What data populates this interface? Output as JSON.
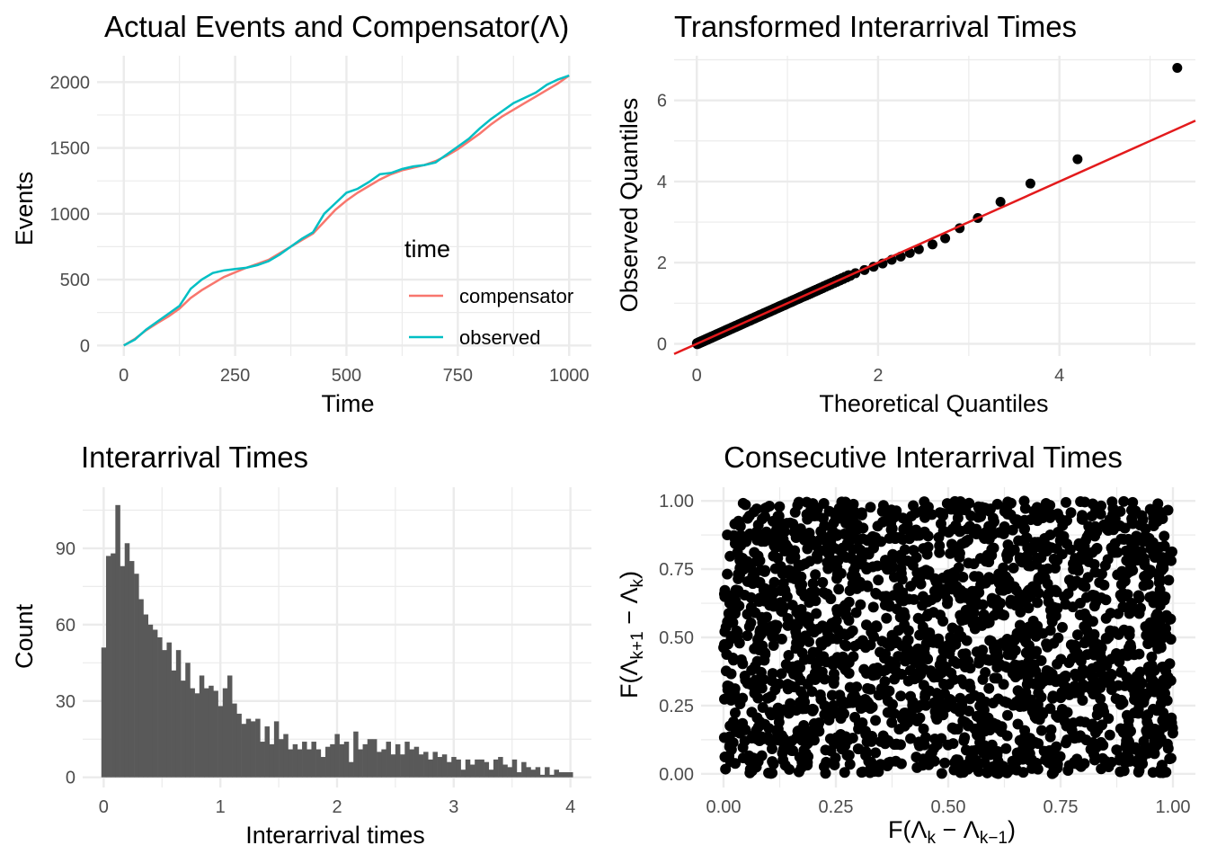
{
  "chart_data": [
    {
      "id": "events",
      "type": "line",
      "title": "Actual Events and Compensator(Λ)",
      "xlabel": "Time",
      "ylabel": "Events",
      "xlim": [
        -60,
        1050
      ],
      "ylim": [
        -80,
        2200
      ],
      "x_ticks": [
        0,
        250,
        500,
        750,
        1000
      ],
      "x_tick_labels": [
        "0",
        "250",
        "500",
        "750",
        "1000"
      ],
      "y_ticks": [
        0,
        500,
        1000,
        1500,
        2000
      ],
      "y_tick_labels": [
        "0",
        "500",
        "1000",
        "1500",
        "2000"
      ],
      "grid": true,
      "legend": {
        "title": "time",
        "placement": "inside-bottom-right"
      },
      "series": [
        {
          "name": "compensator",
          "color": "#F8766D",
          "x": [
            0,
            25,
            50,
            75,
            100,
            125,
            150,
            175,
            200,
            225,
            250,
            275,
            300,
            325,
            350,
            375,
            400,
            425,
            450,
            475,
            500,
            525,
            550,
            575,
            600,
            625,
            650,
            675,
            700,
            725,
            750,
            775,
            800,
            825,
            850,
            875,
            900,
            925,
            950,
            975,
            1000
          ],
          "y": [
            0,
            50,
            115,
            170,
            220,
            280,
            360,
            420,
            470,
            520,
            555,
            590,
            620,
            650,
            700,
            750,
            800,
            850,
            940,
            1030,
            1100,
            1160,
            1210,
            1260,
            1300,
            1330,
            1350,
            1370,
            1400,
            1440,
            1490,
            1550,
            1610,
            1680,
            1740,
            1790,
            1840,
            1890,
            1940,
            1990,
            2050
          ]
        },
        {
          "name": "observed",
          "color": "#00BFC4",
          "x": [
            0,
            25,
            50,
            75,
            100,
            125,
            150,
            175,
            200,
            225,
            250,
            275,
            300,
            325,
            350,
            375,
            400,
            425,
            450,
            475,
            500,
            525,
            550,
            575,
            600,
            625,
            650,
            675,
            700,
            725,
            750,
            775,
            800,
            825,
            850,
            875,
            900,
            925,
            950,
            975,
            1000
          ],
          "y": [
            0,
            45,
            120,
            180,
            240,
            300,
            430,
            500,
            550,
            570,
            580,
            590,
            610,
            640,
            690,
            750,
            810,
            860,
            1000,
            1080,
            1160,
            1190,
            1240,
            1300,
            1310,
            1340,
            1360,
            1370,
            1390,
            1450,
            1510,
            1570,
            1650,
            1720,
            1780,
            1840,
            1880,
            1920,
            1980,
            2020,
            2050
          ]
        }
      ]
    },
    {
      "id": "qq",
      "type": "scatter",
      "title": "Transformed Interarrival Times",
      "xlabel": "Theoretical Quantiles",
      "ylabel": "Observed Quantiles",
      "xlim": [
        -0.25,
        5.5
      ],
      "ylim": [
        -0.3,
        7.1
      ],
      "x_ticks": [
        0,
        2,
        4
      ],
      "x_tick_labels": [
        "0",
        "2",
        "4"
      ],
      "y_ticks": [
        0,
        2,
        4,
        6
      ],
      "y_tick_labels": [
        "0",
        "2",
        "4",
        "6"
      ],
      "grid": true,
      "reference_line": {
        "intercept": 0,
        "slope": 1.0,
        "color": "#E31A1C"
      },
      "points_color": "#000000",
      "n_points": 2050,
      "upper_points": {
        "x": [
          1.75,
          1.85,
          1.95,
          2.05,
          2.15,
          2.25,
          2.35,
          2.45,
          2.6,
          2.74,
          2.9,
          3.1,
          3.35,
          3.68,
          4.2,
          5.3
        ],
        "y": [
          1.74,
          1.82,
          1.9,
          1.98,
          2.07,
          2.15,
          2.24,
          2.33,
          2.45,
          2.6,
          2.85,
          3.1,
          3.5,
          3.95,
          4.55,
          6.8
        ]
      }
    },
    {
      "id": "hist",
      "type": "bar",
      "title": "Interarrival Times",
      "xlabel": "Interarrival times",
      "ylabel": "Count",
      "xlim": [
        -0.18,
        4.18
      ],
      "ylim": [
        -4,
        114
      ],
      "x_ticks": [
        0,
        1,
        2,
        3,
        4
      ],
      "x_tick_labels": [
        "0",
        "1",
        "2",
        "3",
        "4"
      ],
      "y_ticks": [
        0,
        30,
        60,
        90
      ],
      "y_tick_labels": [
        "0",
        "30",
        "60",
        "90"
      ],
      "grid": true,
      "bar_color": "#595959",
      "bin_start": -0.02,
      "bin_width": 0.04,
      "values": [
        51,
        87,
        88,
        107,
        83,
        92,
        85,
        80,
        70,
        64,
        60,
        58,
        55,
        50,
        53,
        42,
        50,
        38,
        45,
        35,
        33,
        40,
        35,
        36,
        34,
        28,
        35,
        40,
        29,
        25,
        21,
        23,
        22,
        23,
        14,
        20,
        13,
        22,
        15,
        17,
        11,
        13,
        11,
        14,
        11,
        14,
        11,
        8,
        12,
        13,
        17,
        13,
        14,
        6,
        18,
        11,
        13,
        15,
        15,
        10,
        11,
        14,
        9,
        13,
        9,
        14,
        11,
        12,
        9,
        10,
        7,
        10,
        8,
        9,
        6,
        8,
        7,
        3,
        7,
        5,
        7,
        7,
        6,
        3,
        7,
        8,
        5,
        4,
        7,
        2,
        6,
        4,
        3,
        4,
        1,
        4,
        1,
        3,
        2,
        2,
        2
      ]
    },
    {
      "id": "consec",
      "type": "scatter",
      "title": "Consecutive Interarrival Times",
      "xlabel": "F(Λk − Λk−1)",
      "ylabel": "F(Λk+1 − Λk)",
      "xlim": [
        -0.05,
        1.05
      ],
      "ylim": [
        -0.05,
        1.05
      ],
      "x_ticks": [
        0,
        0.25,
        0.5,
        0.75,
        1
      ],
      "x_tick_labels": [
        "0.00",
        "0.25",
        "0.50",
        "0.75",
        "1.00"
      ],
      "y_ticks": [
        0,
        0.25,
        0.5,
        0.75,
        1
      ],
      "y_tick_labels": [
        "0.00",
        "0.25",
        "0.50",
        "0.75",
        "1.00"
      ],
      "grid": true,
      "points_color": "#000000",
      "n_points": 2050,
      "distribution": "uniform"
    }
  ]
}
